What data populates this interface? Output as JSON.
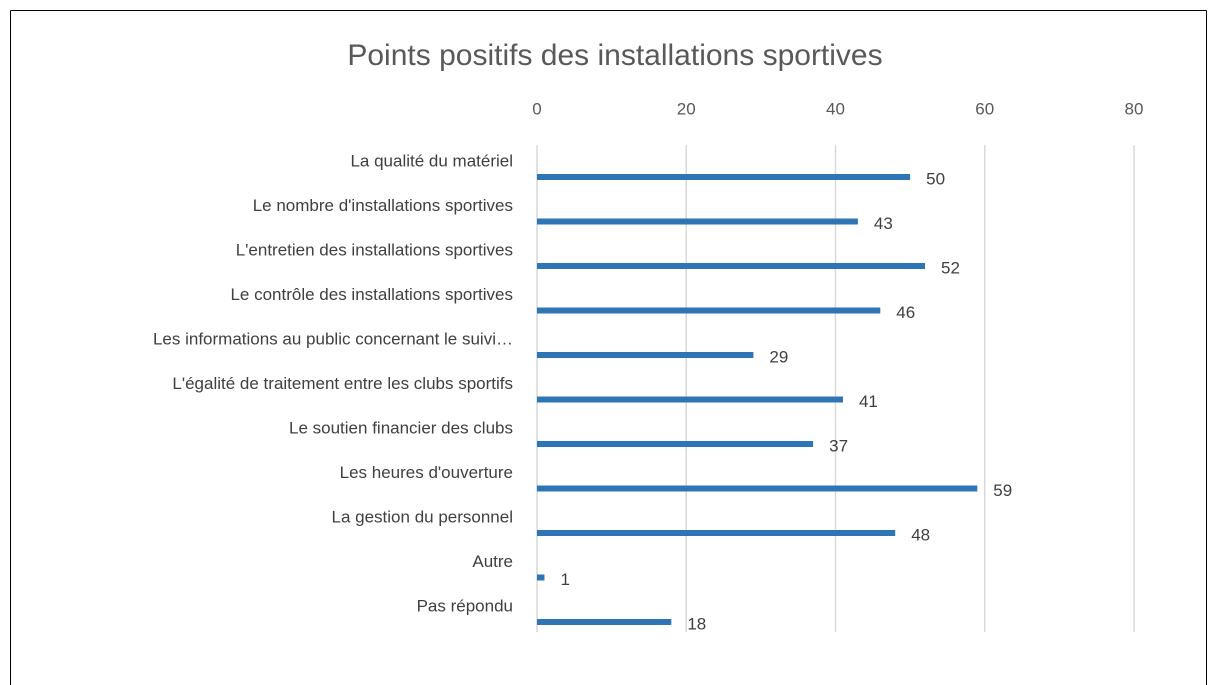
{
  "chart_data": {
    "type": "hbar",
    "title": "Points positifs des installations sportives",
    "categories": [
      "La qualité du matériel",
      "Le nombre d'installations sportives",
      "L'entretien des installations sportives",
      "Le contrôle des installations sportives",
      "Les informations au public concernant le suivi…",
      "L'égalité de traitement entre les clubs sportifs",
      "Le soutien financier des clubs",
      "Les heures d'ouverture",
      "La gestion du personnel",
      "Autre",
      "Pas répondu"
    ],
    "values": [
      50,
      43,
      52,
      46,
      29,
      41,
      37,
      59,
      48,
      1,
      18
    ],
    "color": "#2e75b6",
    "xlim": [
      0,
      80
    ],
    "xticks": [
      0,
      20,
      40,
      60,
      80
    ],
    "grid": true
  }
}
